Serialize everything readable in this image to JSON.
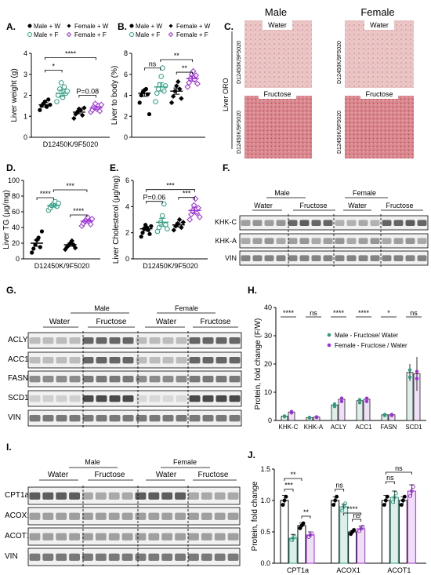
{
  "colors": {
    "male_water": "#000000",
    "male_fructose": "#2e9e83",
    "female_water": "#000000",
    "female_fructose": "#9b30d9",
    "male_bar": "#dfeee9",
    "female_bar": "#efe0f7",
    "sig_green": "#2e9e83",
    "sig_purple": "#9b30d9"
  },
  "panel_labels": {
    "A": "A.",
    "B": "B.",
    "C": "C.",
    "D": "D.",
    "E": "E.",
    "F": "F.",
    "G": "G.",
    "H": "H.",
    "I": "I.",
    "J": "J."
  },
  "legend_ab": {
    "male_w": "Male + W",
    "female_w": "Female + W",
    "male_f": "Male + F",
    "female_f": "Female + F"
  },
  "legend_h": {
    "male": "Male - Fructose/ Water",
    "female": "Female - Fructose / Water"
  },
  "blots": {
    "male": "Male",
    "female": "Female",
    "water": "Water",
    "fructose": "Fructose",
    "F_rows": [
      "KHK-C",
      "KHK-A",
      "VIN"
    ],
    "G_rows": [
      "ACLY",
      "ACC1",
      "FASN",
      "SCD1",
      "VIN"
    ],
    "I_rows": [
      "CPT1a",
      "ACOX1",
      "ACOT1",
      "VIN"
    ]
  },
  "histology": {
    "male": "Male",
    "female": "Female",
    "water": "Water",
    "fructose": "Fructose",
    "side": "Liver ORO",
    "genotype": "D12450K/9F5020"
  },
  "chart_data": [
    {
      "panel": "A",
      "type": "scatter",
      "ylabel": "Liver weight (g)",
      "xlabel": "D12450K/9F5020",
      "ylim": [
        0,
        4
      ],
      "yticks": [
        0,
        1,
        2,
        3,
        4
      ],
      "series": [
        {
          "name": "Male + W",
          "marker": "filled-circle",
          "color": "#000000",
          "mean": 1.55,
          "sem": 0.1,
          "values": [
            1.3,
            1.5,
            1.6,
            1.7,
            1.45,
            1.8,
            1.55
          ]
        },
        {
          "name": "Male + F",
          "marker": "open-circle",
          "color": "#2e9e83",
          "mean": 2.1,
          "sem": 0.15,
          "values": [
            1.7,
            2.0,
            2.3,
            2.6,
            1.9,
            2.4,
            2.1,
            2.2
          ]
        },
        {
          "name": "Female + W",
          "marker": "filled-diamond",
          "color": "#000000",
          "mean": 1.2,
          "sem": 0.08,
          "values": [
            0.9,
            1.1,
            1.2,
            1.35,
            1.3,
            1.05,
            1.4
          ]
        },
        {
          "name": "Female + F",
          "marker": "open-diamond",
          "color": "#9b30d9",
          "mean": 1.4,
          "sem": 0.08,
          "values": [
            1.2,
            1.3,
            1.45,
            1.6,
            1.35,
            1.5,
            1.25,
            1.55
          ]
        }
      ],
      "annotations": [
        "*",
        "****",
        "P=0.08"
      ]
    },
    {
      "panel": "B",
      "type": "scatter",
      "ylabel": "Liver to body (%)",
      "ylim": [
        0,
        8
      ],
      "yticks": [
        0,
        2,
        4,
        6,
        8
      ],
      "series": [
        {
          "name": "Male + W",
          "marker": "filled-circle",
          "color": "#000000",
          "mean": 4.2,
          "sem": 0.3,
          "values": [
            3.3,
            4.0,
            4.3,
            4.5,
            4.6,
            4.1,
            2.2
          ]
        },
        {
          "name": "Male + F",
          "marker": "open-circle",
          "color": "#2e9e83",
          "mean": 4.8,
          "sem": 0.4,
          "values": [
            3.4,
            4.2,
            4.6,
            5.0,
            5.8,
            6.6,
            4.4,
            4.9
          ]
        },
        {
          "name": "Female + W",
          "marker": "filled-diamond",
          "color": "#000000",
          "mean": 4.4,
          "sem": 0.3,
          "values": [
            3.3,
            3.9,
            4.4,
            4.9,
            5.3,
            4.6,
            3.7
          ]
        },
        {
          "name": "Female + F",
          "marker": "open-diamond",
          "color": "#9b30d9",
          "mean": 5.6,
          "sem": 0.25,
          "values": [
            4.8,
            5.2,
            5.6,
            6.0,
            6.3,
            5.5,
            5.9,
            5.1
          ]
        }
      ],
      "annotations": [
        "ns",
        "**",
        "**"
      ]
    },
    {
      "panel": "D",
      "type": "scatter",
      "ylabel": "Liver TG (μg/mg)",
      "xlabel": "D12450K/9F5020",
      "ylim": [
        0,
        100
      ],
      "yticks": [
        0,
        20,
        40,
        60,
        80,
        100
      ],
      "series": [
        {
          "name": "Male + W",
          "marker": "filled-circle",
          "color": "#000000",
          "mean": 20,
          "sem": 4,
          "values": [
            8,
            13,
            18,
            24,
            27,
            15,
            35
          ]
        },
        {
          "name": "Male + F",
          "marker": "open-circle",
          "color": "#2e9e83",
          "mean": 68,
          "sem": 2,
          "values": [
            62,
            65,
            68,
            70,
            73,
            67,
            71
          ]
        },
        {
          "name": "Female + W",
          "marker": "filled-diamond",
          "color": "#000000",
          "mean": 18,
          "sem": 2,
          "values": [
            12,
            15,
            17,
            20,
            23,
            18,
            14
          ]
        },
        {
          "name": "Female + F",
          "marker": "open-diamond",
          "color": "#9b30d9",
          "mean": 48,
          "sem": 2,
          "values": [
            42,
            45,
            48,
            50,
            53,
            47,
            44,
            51
          ]
        }
      ],
      "annotations": [
        "****",
        "***",
        "****"
      ]
    },
    {
      "panel": "E",
      "type": "scatter",
      "ylabel": "Liver Cholesterol (μg/mg)",
      "xlabel": "D12450K/9F5020",
      "ylim": [
        0,
        6
      ],
      "yticks": [
        0,
        2,
        4,
        6
      ],
      "series": [
        {
          "name": "Male + W",
          "marker": "filled-circle",
          "color": "#000000",
          "mean": 2.3,
          "sem": 0.15,
          "values": [
            1.7,
            2.0,
            2.3,
            2.6,
            2.4,
            2.2,
            1.9,
            2.5
          ]
        },
        {
          "name": "Male + F",
          "marker": "open-circle",
          "color": "#2e9e83",
          "mean": 2.8,
          "sem": 0.3,
          "values": [
            2.1,
            2.4,
            2.8,
            3.3,
            4.2,
            2.6,
            2.3
          ]
        },
        {
          "name": "Female + W",
          "marker": "filled-diamond",
          "color": "#000000",
          "mean": 2.6,
          "sem": 0.15,
          "values": [
            2.2,
            2.5,
            2.7,
            3.0,
            2.4,
            2.8
          ]
        },
        {
          "name": "Female + F",
          "marker": "open-diamond",
          "color": "#9b30d9",
          "mean": 3.7,
          "sem": 0.25,
          "values": [
            3.0,
            3.4,
            3.7,
            4.1,
            4.6,
            3.5,
            3.9,
            3.2
          ]
        }
      ],
      "annotations": [
        "P=0.06",
        "***",
        "***"
      ]
    },
    {
      "panel": "H",
      "type": "bar",
      "ylabel": "Protein, fold change (F/W)",
      "ylim": [
        0,
        40
      ],
      "yticks": [
        0,
        10,
        20,
        30,
        40
      ],
      "categories": [
        "KHK-C",
        "KHK-A",
        "ACLY",
        "ACC1",
        "FASN",
        "SCD1"
      ],
      "series": [
        {
          "name": "Male - Fructose/ Water",
          "values": [
            1.5,
            1.0,
            5.5,
            7.0,
            2.0,
            17.0
          ],
          "errors": [
            0.2,
            0.2,
            1.0,
            0.5,
            0.3,
            3.0
          ]
        },
        {
          "name": "Female - Fructose / Water",
          "values": [
            3.0,
            1.2,
            7.5,
            7.5,
            2.0,
            16.5
          ],
          "errors": [
            0.3,
            0.2,
            1.0,
            0.6,
            0.3,
            6.0
          ]
        }
      ],
      "annotations": [
        "****",
        "ns",
        "****",
        "****",
        "*",
        "ns"
      ]
    },
    {
      "panel": "J",
      "type": "bar",
      "ylabel": "Protein, fold change",
      "ylim": [
        0,
        1.5
      ],
      "yticks": [
        0,
        0.5,
        1.0,
        1.5
      ],
      "groups": [
        "CPT1a",
        "ACOX1",
        "ACOT1"
      ],
      "series": [
        {
          "name": "Male + W",
          "values": [
            1.0,
            1.0,
            1.0
          ],
          "errors": [
            0.08,
            0.06,
            0.08
          ]
        },
        {
          "name": "Male + F",
          "values": [
            0.4,
            0.9,
            1.05
          ],
          "errors": [
            0.06,
            0.04,
            0.1
          ]
        },
        {
          "name": "Female + W",
          "values": [
            0.6,
            0.5,
            1.0
          ],
          "errors": [
            0.04,
            0.02,
            0.06
          ]
        },
        {
          "name": "Female + F",
          "values": [
            0.45,
            0.55,
            1.15
          ],
          "errors": [
            0.05,
            0.04,
            0.1
          ]
        }
      ],
      "annotations": [
        "***",
        "**",
        "**",
        "ns",
        "****",
        "ns",
        "ns",
        "ns"
      ]
    }
  ]
}
